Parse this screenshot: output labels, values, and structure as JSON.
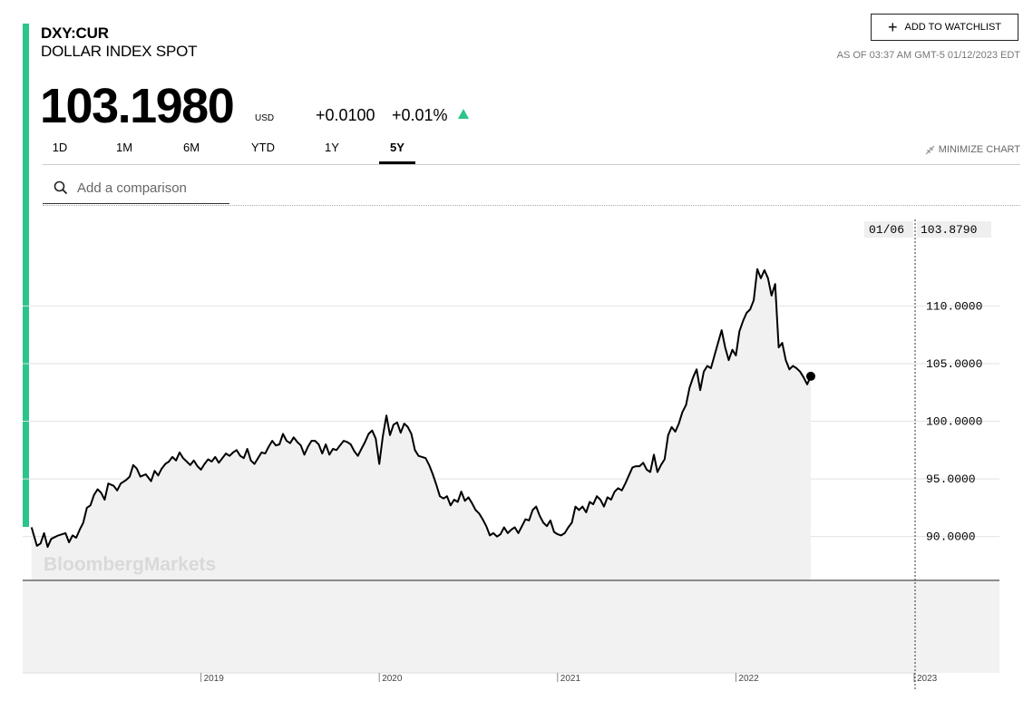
{
  "header": {
    "ticker": "DXY:CUR",
    "name": "DOLLAR INDEX SPOT",
    "price": "103.1980",
    "currency": "USD",
    "change": "+0.0100",
    "change_pct": "+0.01%",
    "watchlist_label": "ADD TO WATCHLIST",
    "as_of": "AS OF 03:37 AM GMT-5 01/12/2023 EDT",
    "accent_color": "#2bc48a"
  },
  "tabs": [
    {
      "label": "1D"
    },
    {
      "label": "1M"
    },
    {
      "label": "6M"
    },
    {
      "label": "YTD"
    },
    {
      "label": "1Y"
    },
    {
      "label": "5Y",
      "active": true
    }
  ],
  "minimize_label": "MINIMIZE CHART",
  "search": {
    "placeholder": "Add a comparison"
  },
  "tooltip": {
    "date": "01/06",
    "value": "103.8790"
  },
  "watermark": "BloombergMarkets",
  "chart_data": {
    "type": "line",
    "title": "",
    "xlabel": "",
    "ylabel": "",
    "x_tick_labels": [
      "2019",
      "2020",
      "2021",
      "2022",
      "2023"
    ],
    "y_tick_labels": [
      "90.0000",
      "95.0000",
      "100.0000",
      "105.0000",
      "110.0000"
    ],
    "ylim": [
      86.2,
      117.5
    ],
    "grid": true,
    "series": [
      {
        "values": [
          [
            2018.05,
            90.8
          ],
          [
            2018.08,
            89.2
          ],
          [
            2018.1,
            89.4
          ],
          [
            2018.12,
            90.3
          ],
          [
            2018.14,
            89.1
          ],
          [
            2018.16,
            89.8
          ],
          [
            2018.2,
            90.1
          ],
          [
            2018.24,
            90.3
          ],
          [
            2018.26,
            89.5
          ],
          [
            2018.28,
            90.1
          ],
          [
            2018.3,
            89.9
          ],
          [
            2018.32,
            90.6
          ],
          [
            2018.34,
            91.2
          ],
          [
            2018.36,
            92.5
          ],
          [
            2018.38,
            92.7
          ],
          [
            2018.4,
            93.6
          ],
          [
            2018.42,
            94.1
          ],
          [
            2018.44,
            93.8
          ],
          [
            2018.46,
            93.2
          ],
          [
            2018.48,
            94.6
          ],
          [
            2018.51,
            94.4
          ],
          [
            2018.53,
            94.0
          ],
          [
            2018.55,
            94.6
          ],
          [
            2018.58,
            94.9
          ],
          [
            2018.6,
            95.2
          ],
          [
            2018.62,
            96.2
          ],
          [
            2018.64,
            95.9
          ],
          [
            2018.66,
            95.2
          ],
          [
            2018.69,
            95.4
          ],
          [
            2018.72,
            94.8
          ],
          [
            2018.74,
            95.7
          ],
          [
            2018.76,
            95.3
          ],
          [
            2018.78,
            95.9
          ],
          [
            2018.8,
            96.3
          ],
          [
            2018.82,
            96.5
          ],
          [
            2018.84,
            96.9
          ],
          [
            2018.86,
            96.6
          ],
          [
            2018.88,
            97.3
          ],
          [
            2018.9,
            96.8
          ],
          [
            2018.92,
            96.5
          ],
          [
            2018.94,
            96.2
          ],
          [
            2018.96,
            96.6
          ],
          [
            2018.98,
            96.1
          ],
          [
            2019.0,
            95.8
          ],
          [
            2019.02,
            96.3
          ],
          [
            2019.04,
            96.7
          ],
          [
            2019.06,
            96.5
          ],
          [
            2019.08,
            96.9
          ],
          [
            2019.1,
            96.4
          ],
          [
            2019.12,
            96.8
          ],
          [
            2019.14,
            97.2
          ],
          [
            2019.16,
            97.0
          ],
          [
            2019.18,
            97.3
          ],
          [
            2019.2,
            97.5
          ],
          [
            2019.22,
            97.0
          ],
          [
            2019.24,
            96.8
          ],
          [
            2019.26,
            97.6
          ],
          [
            2019.28,
            96.6
          ],
          [
            2019.3,
            96.3
          ],
          [
            2019.32,
            96.8
          ],
          [
            2019.34,
            97.3
          ],
          [
            2019.36,
            97.2
          ],
          [
            2019.38,
            97.8
          ],
          [
            2019.4,
            98.3
          ],
          [
            2019.42,
            97.9
          ],
          [
            2019.44,
            98.0
          ],
          [
            2019.46,
            98.9
          ],
          [
            2019.48,
            98.3
          ],
          [
            2019.5,
            98.1
          ],
          [
            2019.52,
            98.6
          ],
          [
            2019.54,
            98.2
          ],
          [
            2019.56,
            97.9
          ],
          [
            2019.58,
            97.1
          ],
          [
            2019.6,
            97.8
          ],
          [
            2019.62,
            98.3
          ],
          [
            2019.64,
            98.3
          ],
          [
            2019.66,
            98.0
          ],
          [
            2019.68,
            97.2
          ],
          [
            2019.7,
            98.0
          ],
          [
            2019.72,
            97.1
          ],
          [
            2019.74,
            97.6
          ],
          [
            2019.76,
            97.5
          ],
          [
            2019.78,
            97.9
          ],
          [
            2019.8,
            98.3
          ],
          [
            2019.82,
            98.2
          ],
          [
            2019.84,
            98.0
          ],
          [
            2019.86,
            97.4
          ],
          [
            2019.88,
            97.0
          ],
          [
            2019.9,
            97.6
          ],
          [
            2019.92,
            98.2
          ],
          [
            2019.94,
            98.9
          ],
          [
            2019.96,
            99.2
          ],
          [
            2019.98,
            98.5
          ],
          [
            2020.0,
            96.3
          ],
          [
            2020.02,
            98.7
          ],
          [
            2020.04,
            100.5
          ],
          [
            2020.06,
            98.8
          ],
          [
            2020.08,
            99.7
          ],
          [
            2020.1,
            99.9
          ],
          [
            2020.12,
            99.0
          ],
          [
            2020.14,
            99.8
          ],
          [
            2020.16,
            99.5
          ],
          [
            2020.18,
            98.9
          ],
          [
            2020.2,
            97.5
          ],
          [
            2020.22,
            97.0
          ],
          [
            2020.24,
            96.9
          ],
          [
            2020.26,
            96.8
          ],
          [
            2020.28,
            96.2
          ],
          [
            2020.3,
            95.4
          ],
          [
            2020.32,
            94.5
          ],
          [
            2020.34,
            93.5
          ],
          [
            2020.36,
            93.3
          ],
          [
            2020.38,
            93.5
          ],
          [
            2020.4,
            92.7
          ],
          [
            2020.42,
            93.2
          ],
          [
            2020.44,
            93.0
          ],
          [
            2020.46,
            93.9
          ],
          [
            2020.48,
            93.1
          ],
          [
            2020.5,
            93.4
          ],
          [
            2020.52,
            92.9
          ],
          [
            2020.54,
            92.3
          ],
          [
            2020.56,
            92.0
          ],
          [
            2020.58,
            91.5
          ],
          [
            2020.6,
            90.9
          ],
          [
            2020.62,
            90.1
          ],
          [
            2020.64,
            90.3
          ],
          [
            2020.66,
            90.0
          ],
          [
            2020.68,
            90.2
          ],
          [
            2020.7,
            90.8
          ],
          [
            2020.72,
            90.3
          ],
          [
            2020.74,
            90.6
          ],
          [
            2020.76,
            90.8
          ],
          [
            2020.78,
            90.3
          ],
          [
            2020.8,
            90.9
          ],
          [
            2020.82,
            91.5
          ],
          [
            2020.84,
            91.4
          ],
          [
            2020.86,
            92.3
          ],
          [
            2020.88,
            92.6
          ],
          [
            2020.9,
            91.8
          ],
          [
            2020.92,
            91.2
          ],
          [
            2020.94,
            90.9
          ],
          [
            2020.96,
            91.4
          ],
          [
            2020.98,
            90.4
          ],
          [
            2021.0,
            90.2
          ],
          [
            2021.02,
            90.1
          ],
          [
            2021.04,
            90.3
          ],
          [
            2021.06,
            90.8
          ],
          [
            2021.08,
            91.2
          ],
          [
            2021.1,
            92.6
          ],
          [
            2021.12,
            92.3
          ],
          [
            2021.14,
            92.6
          ],
          [
            2021.16,
            92.1
          ],
          [
            2021.18,
            93.0
          ],
          [
            2021.2,
            92.8
          ],
          [
            2021.22,
            93.5
          ],
          [
            2021.24,
            93.2
          ],
          [
            2021.26,
            92.6
          ],
          [
            2021.28,
            93.4
          ],
          [
            2021.3,
            93.2
          ],
          [
            2021.32,
            93.9
          ],
          [
            2021.34,
            94.2
          ],
          [
            2021.36,
            94.0
          ],
          [
            2021.38,
            94.6
          ],
          [
            2021.4,
            95.3
          ],
          [
            2021.42,
            96.0
          ],
          [
            2021.44,
            96.1
          ],
          [
            2021.46,
            96.1
          ],
          [
            2021.48,
            96.4
          ],
          [
            2021.5,
            95.8
          ],
          [
            2021.52,
            95.6
          ],
          [
            2021.54,
            97.1
          ],
          [
            2021.56,
            95.6
          ],
          [
            2021.58,
            96.2
          ],
          [
            2021.6,
            96.7
          ],
          [
            2021.62,
            98.8
          ],
          [
            2021.64,
            99.5
          ],
          [
            2021.66,
            99.1
          ],
          [
            2021.68,
            99.8
          ],
          [
            2021.7,
            100.8
          ],
          [
            2021.72,
            101.4
          ],
          [
            2021.74,
            102.9
          ],
          [
            2021.76,
            103.8
          ],
          [
            2021.78,
            104.5
          ],
          [
            2021.8,
            102.7
          ],
          [
            2021.82,
            104.3
          ],
          [
            2021.84,
            104.8
          ],
          [
            2021.86,
            104.6
          ],
          [
            2021.88,
            105.7
          ],
          [
            2021.9,
            106.8
          ],
          [
            2021.92,
            107.9
          ],
          [
            2021.94,
            106.4
          ],
          [
            2021.96,
            105.3
          ],
          [
            2021.98,
            106.2
          ],
          [
            2022.0,
            105.7
          ],
          [
            2022.02,
            107.8
          ],
          [
            2022.04,
            108.7
          ],
          [
            2022.06,
            109.4
          ],
          [
            2022.08,
            109.7
          ],
          [
            2022.1,
            110.5
          ],
          [
            2022.12,
            113.2
          ],
          [
            2022.14,
            112.4
          ],
          [
            2022.16,
            113.1
          ],
          [
            2022.18,
            112.4
          ],
          [
            2022.2,
            110.9
          ],
          [
            2022.22,
            111.9
          ],
          [
            2022.24,
            106.4
          ],
          [
            2022.26,
            106.8
          ],
          [
            2022.28,
            105.3
          ],
          [
            2022.3,
            104.5
          ],
          [
            2022.32,
            104.8
          ],
          [
            2022.34,
            104.6
          ],
          [
            2022.36,
            104.3
          ],
          [
            2022.38,
            103.8
          ],
          [
            2022.4,
            103.2
          ],
          [
            2022.42,
            103.9
          ]
        ]
      }
    ]
  }
}
